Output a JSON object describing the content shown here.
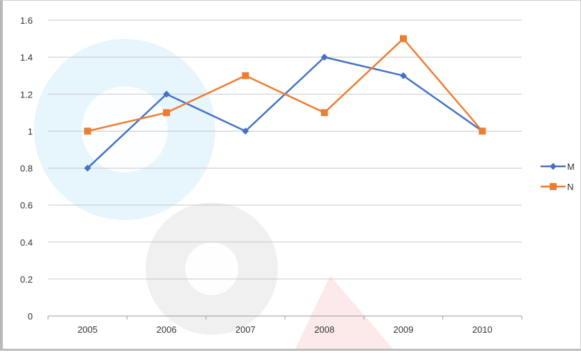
{
  "chart_data": {
    "type": "line",
    "title": "",
    "xlabel": "",
    "ylabel": "",
    "categories": [
      "2005",
      "2006",
      "2007",
      "2008",
      "2009",
      "2010"
    ],
    "ylim": [
      0,
      1.6
    ],
    "yticks": [
      "0",
      "0.2",
      "0.4",
      "0.6",
      "0.8",
      "1",
      "1.2",
      "1.4",
      "1.6"
    ],
    "grid": true,
    "legend_position": "right",
    "series": [
      {
        "name": "M",
        "values": [
          0.8,
          1.2,
          1.0,
          1.4,
          1.3,
          1.0
        ],
        "color": "#4472c4",
        "marker": "diamond"
      },
      {
        "name": "N",
        "values": [
          1.0,
          1.1,
          1.3,
          1.1,
          1.5,
          1.0
        ],
        "color": "#ed7d31",
        "marker": "square"
      }
    ]
  }
}
